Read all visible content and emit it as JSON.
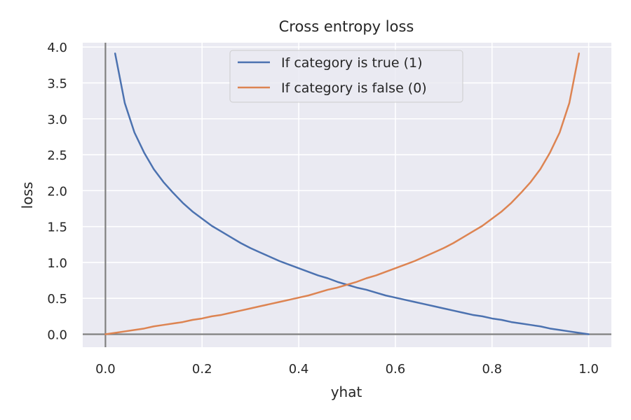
{
  "chart_data": {
    "type": "line",
    "title": "Cross entropy loss",
    "xlabel": "yhat",
    "ylabel": "loss",
    "xlim": [
      -0.047,
      1.047
    ],
    "ylim": [
      -0.18,
      4.06
    ],
    "xticks": [
      0.0,
      0.2,
      0.4,
      0.6,
      0.8,
      1.0
    ],
    "xtick_labels": [
      "0.0",
      "0.2",
      "0.4",
      "0.6",
      "0.8",
      "1.0"
    ],
    "yticks": [
      0.0,
      0.5,
      1.0,
      1.5,
      2.0,
      2.5,
      3.0,
      3.5,
      4.0
    ],
    "ytick_labels": [
      "0.0",
      "0.5",
      "1.0",
      "1.5",
      "2.0",
      "2.5",
      "3.0",
      "3.5",
      "4.0"
    ],
    "grid": true,
    "legend_position": "top-center",
    "background_color": "#eaeaf2",
    "reference_lines": {
      "x": 0.0,
      "y": 0.0,
      "color": "#808080"
    },
    "x": [
      0.02,
      0.04,
      0.06,
      0.08,
      0.1,
      0.12,
      0.14,
      0.16,
      0.18,
      0.2,
      0.22,
      0.24,
      0.26,
      0.28,
      0.3,
      0.32,
      0.34,
      0.36,
      0.38,
      0.4,
      0.42,
      0.44,
      0.46,
      0.48,
      0.5,
      0.52,
      0.54,
      0.56,
      0.58,
      0.6,
      0.62,
      0.64,
      0.66,
      0.68,
      0.7,
      0.72,
      0.74,
      0.76,
      0.78,
      0.8,
      0.82,
      0.84,
      0.86,
      0.88,
      0.9,
      0.92,
      0.94,
      0.96,
      0.98,
      1.0
    ],
    "series": [
      {
        "name": "If category is true (1)",
        "color": "#4c72b0",
        "values": [
          3.91,
          3.22,
          2.81,
          2.53,
          2.3,
          2.12,
          1.97,
          1.83,
          1.71,
          1.61,
          1.51,
          1.43,
          1.35,
          1.27,
          1.2,
          1.14,
          1.08,
          1.02,
          0.97,
          0.92,
          0.87,
          0.82,
          0.78,
          0.73,
          0.69,
          0.65,
          0.62,
          0.58,
          0.54,
          0.51,
          0.48,
          0.45,
          0.42,
          0.39,
          0.36,
          0.33,
          0.3,
          0.27,
          0.25,
          0.22,
          0.2,
          0.17,
          0.15,
          0.13,
          0.11,
          0.08,
          0.06,
          0.04,
          0.02,
          0.0
        ]
      },
      {
        "name": "If category is false (0)",
        "color": "#dd8452",
        "values": [
          0.0,
          0.02,
          0.04,
          0.06,
          0.08,
          0.11,
          0.13,
          0.15,
          0.17,
          0.2,
          0.22,
          0.25,
          0.27,
          0.3,
          0.33,
          0.36,
          0.39,
          0.42,
          0.45,
          0.48,
          0.51,
          0.54,
          0.58,
          0.62,
          0.65,
          0.69,
          0.73,
          0.78,
          0.82,
          0.87,
          0.92,
          0.97,
          1.02,
          1.08,
          1.14,
          1.2,
          1.27,
          1.35,
          1.43,
          1.51,
          1.61,
          1.71,
          1.83,
          1.97,
          2.12,
          2.3,
          2.53,
          2.81,
          3.22,
          3.91
        ],
        "x_offset_note": ""
      }
    ]
  }
}
